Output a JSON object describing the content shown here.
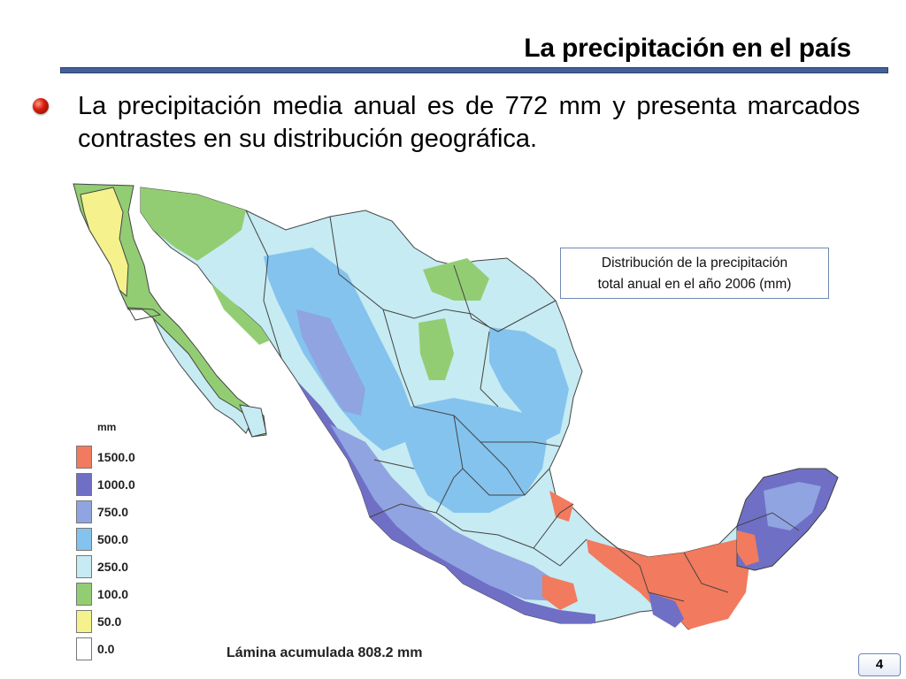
{
  "slide": {
    "title": "La precipitación en el país",
    "bullet_text": "La precipitación media anual es de 772 mm y presenta marcados contrastes en su distribución geográfica.",
    "page_number": "4"
  },
  "map": {
    "caption_line1": "Distribución de la precipitación",
    "caption_line2": "total anual en el año 2006 (mm)",
    "total_label": "Lámina acumulada 808.2 mm",
    "legend_unit": "mm",
    "legend": [
      {
        "label": "1500.0",
        "color": "#f27a5e"
      },
      {
        "label": "1000.0",
        "color": "#6f6fc6"
      },
      {
        "label": "750.0",
        "color": "#8fa4e0"
      },
      {
        "label": "500.0",
        "color": "#84c3ee"
      },
      {
        "label": "250.0",
        "color": "#c6ebf2"
      },
      {
        "label": "100.0",
        "color": "#93cd73"
      },
      {
        "label": "50.0",
        "color": "#f5f28e"
      },
      {
        "label": "0.0",
        "color": "#ffffff"
      }
    ]
  }
}
